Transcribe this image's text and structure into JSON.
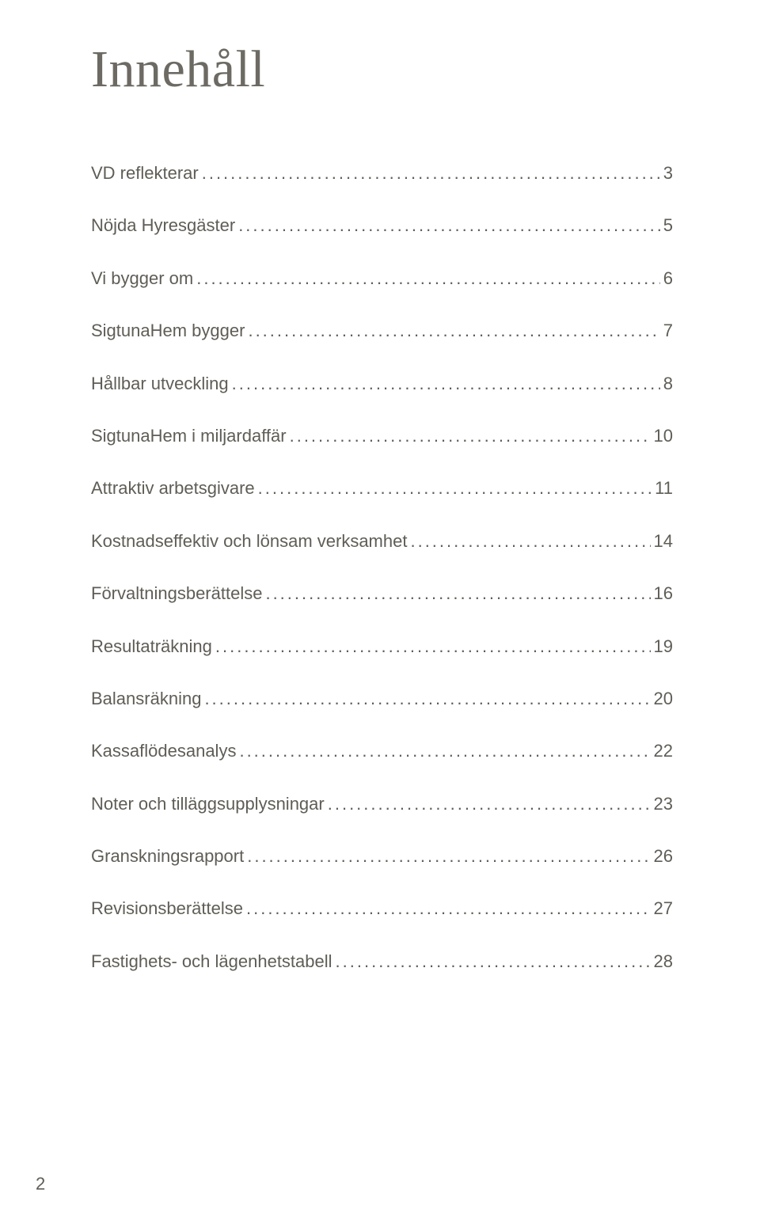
{
  "title": "Innehåll",
  "title_color": "#6c6a62",
  "title_fontsize": 66,
  "toc": {
    "font_color": "#5f5d56",
    "fontsize": 22,
    "dot_color": "#5f5d56",
    "items": [
      {
        "label": "VD reflekterar",
        "page": "3"
      },
      {
        "label": "Nöjda Hyresgäster",
        "page": "5"
      },
      {
        "label": "Vi bygger om",
        "page": "6"
      },
      {
        "label": "SigtunaHem bygger",
        "page": "7"
      },
      {
        "label": "Hållbar utveckling",
        "page": "8"
      },
      {
        "label": "SigtunaHem i miljardaffär",
        "page": "10"
      },
      {
        "label": "Attraktiv arbetsgivare",
        "page": "11"
      },
      {
        "label": "Kostnadseffektiv och lönsam verksamhet",
        "page": "14"
      },
      {
        "label": "Förvaltningsberättelse",
        "page": "16"
      },
      {
        "label": "Resultaträkning",
        "page": "19"
      },
      {
        "label": "Balansräkning",
        "page": "20"
      },
      {
        "label": "Kassaflödesanalys",
        "page": "22"
      },
      {
        "label": "Noter och tilläggsupplysningar",
        "page": "23"
      },
      {
        "label": "Granskningsrapport",
        "page": "26"
      },
      {
        "label": "Revisionsberättelse",
        "page": "27"
      },
      {
        "label": "Fastighets- och lägenhetstabell",
        "page": "28"
      }
    ]
  },
  "page_number": "2",
  "page_number_color": "#5f5d56",
  "page_number_fontsize": 22,
  "background_color": "#ffffff"
}
